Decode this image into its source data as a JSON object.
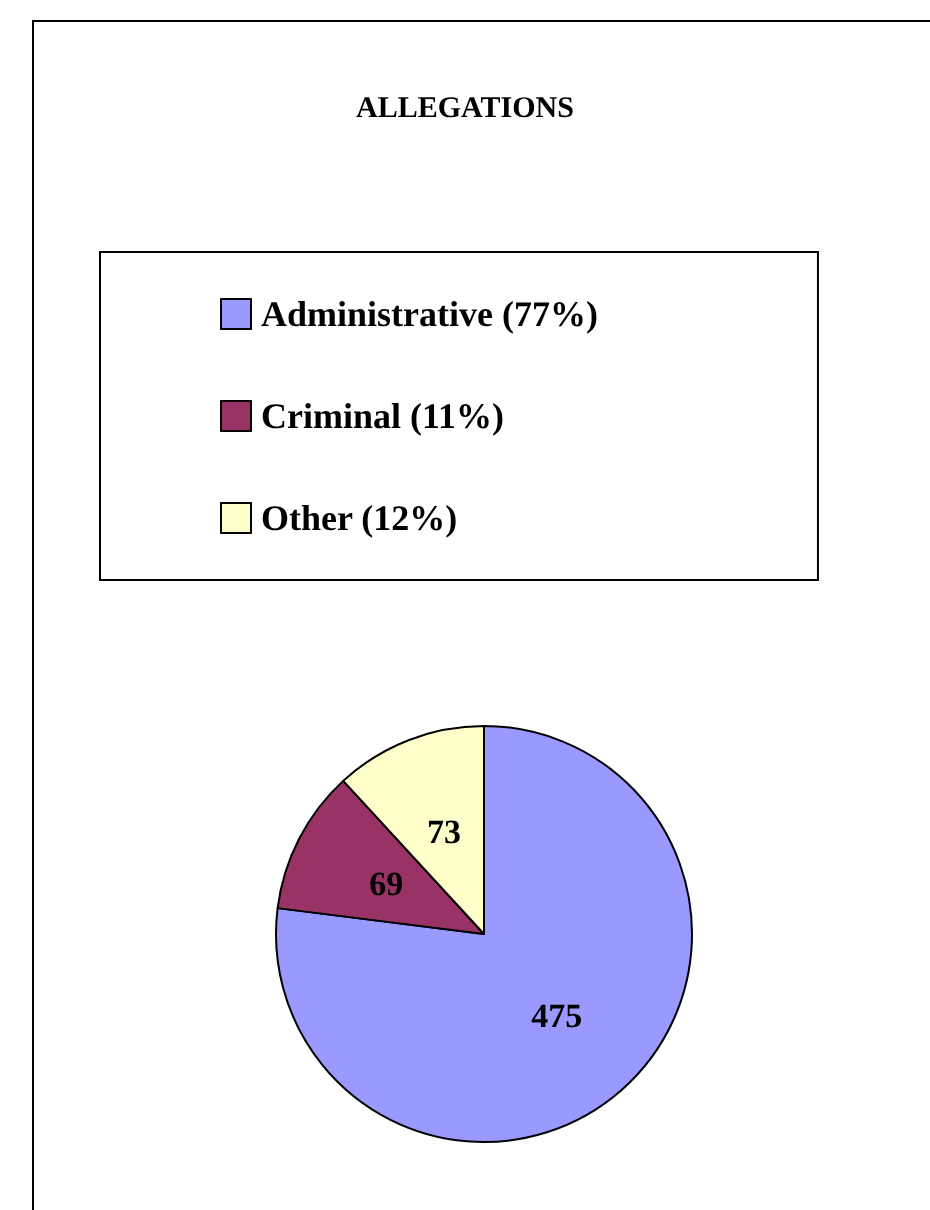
{
  "chart_data": {
    "type": "pie",
    "title": "ALLEGATIONS",
    "categories": [
      "Administrative (77%)",
      "Criminal (11%)",
      "Other (12%)"
    ],
    "values": [
      475,
      69,
      73
    ],
    "colors": [
      "#9999ff",
      "#993366",
      "#ffffcc"
    ],
    "data_labels": true,
    "legend": "top"
  }
}
